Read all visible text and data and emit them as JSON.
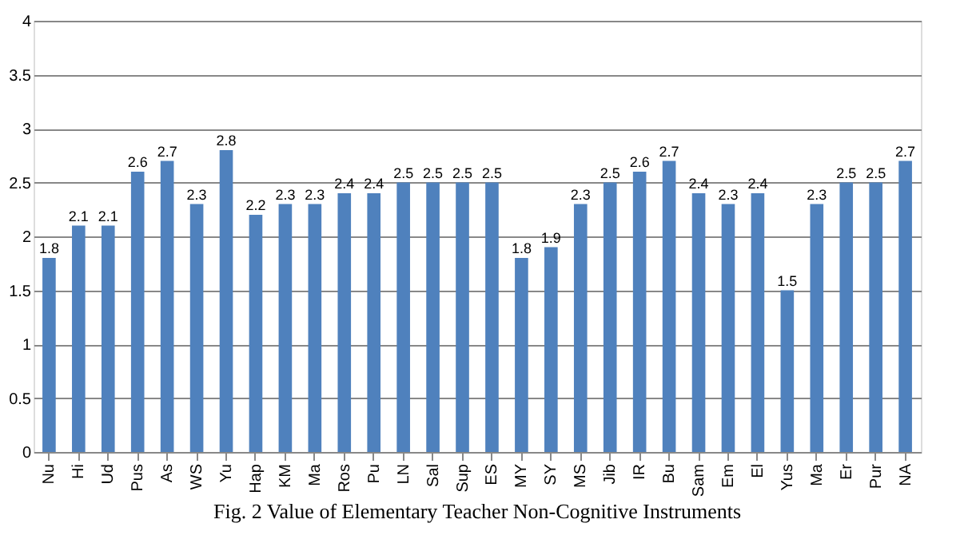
{
  "chart_data": {
    "type": "bar",
    "title": "Fig. 2 Value of Elementary Teacher Non-Cognitive Instruments",
    "categories": [
      "Nu",
      "Hi",
      "Ud",
      "Pus",
      "As",
      "WS",
      "Yu",
      "Hap",
      "KM",
      "Ma",
      "Ros",
      "Pu",
      "LN",
      "Sal",
      "Sup",
      "ES",
      "MY",
      "SY",
      "MS",
      "Jib",
      "IR",
      "Bu",
      "Sam",
      "Em",
      "El",
      "Yus",
      "Ma",
      "Er",
      "Pur",
      "NA"
    ],
    "values": [
      1.8,
      2.1,
      2.1,
      2.6,
      2.7,
      2.3,
      2.8,
      2.2,
      2.3,
      2.3,
      2.4,
      2.4,
      2.5,
      2.5,
      2.5,
      2.5,
      1.8,
      1.9,
      2.3,
      2.5,
      2.6,
      2.7,
      2.4,
      2.3,
      2.4,
      1.5,
      2.3,
      2.5,
      2.5,
      2.7
    ],
    "color": "#4f81bd",
    "ylim": [
      0,
      4
    ],
    "yticks": [
      0,
      0.5,
      1,
      1.5,
      2,
      2.5,
      3,
      3.5,
      4
    ],
    "grid": "y",
    "data_labels": true
  }
}
